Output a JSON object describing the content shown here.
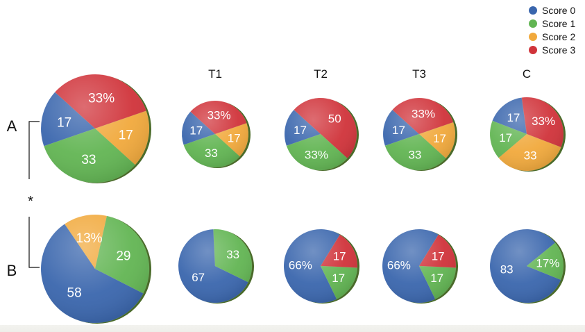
{
  "colors": {
    "Score 0": "#3a66ad",
    "Score 1": "#62b553",
    "Score 2": "#f1a93c",
    "Score 3": "#d0333a",
    "rim": "#4a6b2a"
  },
  "legend": {
    "entries": [
      {
        "name": "Score 0"
      },
      {
        "name": "Score 1"
      },
      {
        "name": "Score 2"
      },
      {
        "name": "Score 3"
      }
    ]
  },
  "row_labels": {
    "a": "A",
    "b": "B"
  },
  "significance_mark": "*",
  "chart_data": {
    "type": "pie",
    "legend_position": "top-right",
    "rows": [
      {
        "label": "A",
        "pies": [
          {
            "title": "",
            "slices": [
              {
                "series": "Score 0",
                "value": 17,
                "label": "17"
              },
              {
                "series": "Score 3",
                "value": 33,
                "label": "33%"
              },
              {
                "series": "Score 2",
                "value": 17,
                "label": "17"
              },
              {
                "series": "Score 1",
                "value": 33,
                "label": "33"
              }
            ]
          },
          {
            "title": "T1",
            "slices": [
              {
                "series": "Score 0",
                "value": 17,
                "label": "17"
              },
              {
                "series": "Score 3",
                "value": 33,
                "label": "33%"
              },
              {
                "series": "Score 2",
                "value": 17,
                "label": "17"
              },
              {
                "series": "Score 1",
                "value": 33,
                "label": "33"
              }
            ]
          },
          {
            "title": "T2",
            "slices": [
              {
                "series": "Score 0",
                "value": 17,
                "label": "17"
              },
              {
                "series": "Score 3",
                "value": 50,
                "label": "50"
              },
              {
                "series": "Score 1",
                "value": 33,
                "label": "33%"
              }
            ]
          },
          {
            "title": "T3",
            "slices": [
              {
                "series": "Score 0",
                "value": 17,
                "label": "17"
              },
              {
                "series": "Score 3",
                "value": 33,
                "label": "33%"
              },
              {
                "series": "Score 2",
                "value": 17,
                "label": "17"
              },
              {
                "series": "Score 1",
                "value": 33,
                "label": "33"
              }
            ]
          },
          {
            "title": "C",
            "slices": [
              {
                "series": "Score 0",
                "value": 17,
                "label": "17"
              },
              {
                "series": "Score 3",
                "value": 33,
                "label": "33%"
              },
              {
                "series": "Score 2",
                "value": 33,
                "label": "33"
              },
              {
                "series": "Score 1",
                "value": 17,
                "label": "17"
              }
            ]
          }
        ]
      },
      {
        "label": "B",
        "pies": [
          {
            "title": "",
            "slices": [
              {
                "series": "Score 0",
                "value": 58,
                "label": "58"
              },
              {
                "series": "Score 2",
                "value": 13,
                "label": "13%"
              },
              {
                "series": "Score 1",
                "value": 29,
                "label": "29"
              }
            ]
          },
          {
            "title": "T1",
            "slices": [
              {
                "series": "Score 0",
                "value": 67,
                "label": "67"
              },
              {
                "series": "Score 1",
                "value": 33,
                "label": "33"
              }
            ]
          },
          {
            "title": "T2",
            "slices": [
              {
                "series": "Score 0",
                "value": 66,
                "label": "66%"
              },
              {
                "series": "Score 3",
                "value": 17,
                "label": "17"
              },
              {
                "series": "Score 1",
                "value": 17,
                "label": "17"
              }
            ]
          },
          {
            "title": "T3",
            "slices": [
              {
                "series": "Score 0",
                "value": 66,
                "label": "66%"
              },
              {
                "series": "Score 3",
                "value": 17,
                "label": "17"
              },
              {
                "series": "Score 1",
                "value": 17,
                "label": "17"
              }
            ]
          },
          {
            "title": "C",
            "slices": [
              {
                "series": "Score 0",
                "value": 83,
                "label": "83"
              },
              {
                "series": "Score 1",
                "value": 17,
                "label": "17%"
              }
            ]
          }
        ]
      }
    ]
  }
}
